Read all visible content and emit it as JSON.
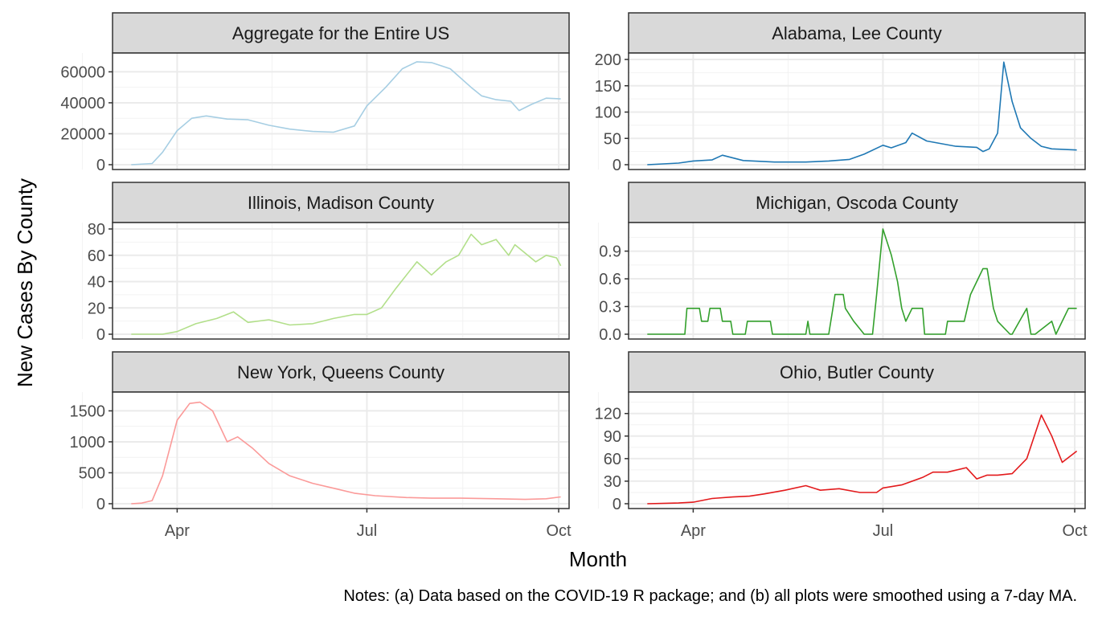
{
  "figure": {
    "ylabel": "New Cases By County",
    "xlabel": "Month",
    "caption": "Notes: (a) Data based on the COVID-19 R package; and (b) all plots were smoothed using a 7-day MA.",
    "month_ticks": [
      {
        "label": "Apr",
        "date": "2020-04-01"
      },
      {
        "label": "Jul",
        "date": "2020-07-01"
      },
      {
        "label": "Oct",
        "date": "2020-10-01"
      }
    ]
  },
  "chart_data": [
    {
      "type": "line",
      "title": "Aggregate for the Entire US",
      "color": "#a6cee3",
      "ylim": [
        0,
        68000
      ],
      "yticks": [
        0,
        20000,
        40000,
        60000
      ],
      "ytick_labels": [
        "0",
        "20000",
        "40000",
        "60000"
      ],
      "x": [
        "2020-03-10",
        "2020-03-20",
        "2020-03-25",
        "2020-04-01",
        "2020-04-08",
        "2020-04-15",
        "2020-04-25",
        "2020-05-05",
        "2020-05-15",
        "2020-05-25",
        "2020-06-05",
        "2020-06-15",
        "2020-06-25",
        "2020-07-01",
        "2020-07-10",
        "2020-07-18",
        "2020-07-25",
        "2020-08-01",
        "2020-08-10",
        "2020-08-20",
        "2020-08-25",
        "2020-09-01",
        "2020-09-08",
        "2020-09-12",
        "2020-09-18",
        "2020-09-25",
        "2020-10-02"
      ],
      "y": [
        0,
        800,
        8000,
        22000,
        30000,
        31500,
        29500,
        29000,
        25500,
        23000,
        21500,
        21000,
        25000,
        38000,
        50000,
        62000,
        66500,
        66000,
        62000,
        50000,
        44500,
        42000,
        41000,
        35000,
        39000,
        43000,
        42500
      ]
    },
    {
      "type": "line",
      "title": "Alabama, Lee County",
      "color": "#1f78b4",
      "ylim": [
        0,
        200
      ],
      "yticks": [
        0,
        50,
        100,
        150,
        200
      ],
      "ytick_labels": [
        "0",
        "50",
        "100",
        "150",
        "200"
      ],
      "x": [
        "2020-03-10",
        "2020-03-25",
        "2020-04-01",
        "2020-04-10",
        "2020-04-15",
        "2020-04-25",
        "2020-05-10",
        "2020-05-25",
        "2020-06-05",
        "2020-06-15",
        "2020-06-22",
        "2020-07-01",
        "2020-07-05",
        "2020-07-12",
        "2020-07-15",
        "2020-07-22",
        "2020-08-05",
        "2020-08-15",
        "2020-08-18",
        "2020-08-21",
        "2020-08-25",
        "2020-08-28",
        "2020-09-01",
        "2020-09-05",
        "2020-09-10",
        "2020-09-15",
        "2020-09-20",
        "2020-10-02"
      ],
      "y": [
        0,
        3,
        7,
        9,
        18,
        8,
        5,
        5,
        7,
        10,
        20,
        37,
        32,
        42,
        60,
        45,
        35,
        33,
        25,
        30,
        60,
        195,
        120,
        70,
        50,
        35,
        30,
        28
      ]
    },
    {
      "type": "line",
      "title": "Illinois, Madison County",
      "color": "#b2df8a",
      "ylim": [
        0,
        80
      ],
      "yticks": [
        0,
        20,
        40,
        60,
        80
      ],
      "ytick_labels": [
        "0",
        "20",
        "40",
        "60",
        "80"
      ],
      "x": [
        "2020-03-10",
        "2020-03-25",
        "2020-04-01",
        "2020-04-10",
        "2020-04-20",
        "2020-04-28",
        "2020-05-05",
        "2020-05-15",
        "2020-05-25",
        "2020-06-05",
        "2020-06-15",
        "2020-06-25",
        "2020-07-01",
        "2020-07-08",
        "2020-07-15",
        "2020-07-25",
        "2020-08-01",
        "2020-08-08",
        "2020-08-14",
        "2020-08-20",
        "2020-08-25",
        "2020-09-01",
        "2020-09-07",
        "2020-09-10",
        "2020-09-20",
        "2020-09-25",
        "2020-09-30",
        "2020-10-02"
      ],
      "y": [
        0,
        0,
        2,
        8,
        12,
        17,
        9,
        11,
        7,
        8,
        12,
        15,
        15,
        20,
        35,
        55,
        45,
        55,
        60,
        76,
        68,
        72,
        60,
        68,
        55,
        60,
        58,
        52
      ]
    },
    {
      "type": "line",
      "title": "Michigan, Oscoda County",
      "color": "#33a02c",
      "ylim": [
        0,
        1.14
      ],
      "yticks": [
        0.0,
        0.3,
        0.6,
        0.9
      ],
      "ytick_labels": [
        "0.0",
        "0.3",
        "0.6",
        "0.9"
      ],
      "x": [
        "2020-03-10",
        "2020-03-28",
        "2020-03-29",
        "2020-04-04",
        "2020-04-05",
        "2020-04-08",
        "2020-04-09",
        "2020-04-14",
        "2020-04-15",
        "2020-04-19",
        "2020-04-20",
        "2020-04-26",
        "2020-04-27",
        "2020-05-08",
        "2020-05-09",
        "2020-05-25",
        "2020-05-26",
        "2020-05-27",
        "2020-06-05",
        "2020-06-07",
        "2020-06-08",
        "2020-06-12",
        "2020-06-13",
        "2020-06-17",
        "2020-06-22",
        "2020-06-26",
        "2020-06-28",
        "2020-07-01",
        "2020-07-05",
        "2020-07-08",
        "2020-07-10",
        "2020-07-12",
        "2020-07-15",
        "2020-07-20",
        "2020-07-21",
        "2020-07-31",
        "2020-08-01",
        "2020-08-09",
        "2020-08-12",
        "2020-08-18",
        "2020-08-20",
        "2020-08-23",
        "2020-08-25",
        "2020-08-31",
        "2020-09-01",
        "2020-09-08",
        "2020-09-10",
        "2020-09-12",
        "2020-09-20",
        "2020-09-22",
        "2020-09-25",
        "2020-09-28",
        "2020-10-02"
      ],
      "y": [
        0,
        0,
        0.28,
        0.28,
        0.14,
        0.14,
        0.28,
        0.28,
        0.14,
        0.14,
        0,
        0,
        0.14,
        0.14,
        0,
        0,
        0.14,
        0,
        0,
        0.28,
        0.43,
        0.43,
        0.28,
        0.14,
        0,
        0,
        0.43,
        1.14,
        0.86,
        0.57,
        0.28,
        0.14,
        0.28,
        0.28,
        0,
        0,
        0.14,
        0.14,
        0.43,
        0.71,
        0.71,
        0.28,
        0.14,
        0,
        0,
        0.28,
        0,
        0,
        0.14,
        0,
        0.14,
        0.28,
        0.28
      ]
    },
    {
      "type": "line",
      "title": "New York, Queens County",
      "color": "#fb9a99",
      "ylim": [
        0,
        1700
      ],
      "yticks": [
        0,
        500,
        1000,
        1500
      ],
      "ytick_labels": [
        "0",
        "500",
        "1000",
        "1500"
      ],
      "x": [
        "2020-03-10",
        "2020-03-15",
        "2020-03-20",
        "2020-03-25",
        "2020-04-01",
        "2020-04-07",
        "2020-04-12",
        "2020-04-18",
        "2020-04-25",
        "2020-04-30",
        "2020-05-07",
        "2020-05-15",
        "2020-05-25",
        "2020-06-05",
        "2020-06-15",
        "2020-06-25",
        "2020-07-05",
        "2020-07-20",
        "2020-08-01",
        "2020-08-15",
        "2020-09-01",
        "2020-09-15",
        "2020-09-25",
        "2020-10-02"
      ],
      "y": [
        0,
        10,
        50,
        450,
        1350,
        1620,
        1640,
        1500,
        1000,
        1080,
        900,
        650,
        450,
        330,
        250,
        170,
        130,
        100,
        90,
        90,
        80,
        70,
        80,
        110
      ]
    },
    {
      "type": "line",
      "title": "Ohio, Butler County",
      "color": "#e31a1c",
      "ylim": [
        0,
        140
      ],
      "yticks": [
        0,
        30,
        60,
        90,
        120
      ],
      "ytick_labels": [
        "0",
        "30",
        "60",
        "90",
        "120"
      ],
      "x": [
        "2020-03-10",
        "2020-03-25",
        "2020-04-01",
        "2020-04-10",
        "2020-04-20",
        "2020-04-28",
        "2020-05-05",
        "2020-05-15",
        "2020-05-25",
        "2020-06-01",
        "2020-06-10",
        "2020-06-20",
        "2020-06-28",
        "2020-07-01",
        "2020-07-10",
        "2020-07-20",
        "2020-07-25",
        "2020-08-01",
        "2020-08-10",
        "2020-08-15",
        "2020-08-20",
        "2020-08-25",
        "2020-09-01",
        "2020-09-08",
        "2020-09-15",
        "2020-09-20",
        "2020-09-25",
        "2020-10-02"
      ],
      "y": [
        0,
        1,
        2,
        7,
        9,
        10,
        13,
        18,
        24,
        18,
        20,
        15,
        15,
        21,
        25,
        35,
        42,
        42,
        48,
        33,
        38,
        38,
        40,
        60,
        118,
        90,
        55,
        70
      ]
    }
  ]
}
